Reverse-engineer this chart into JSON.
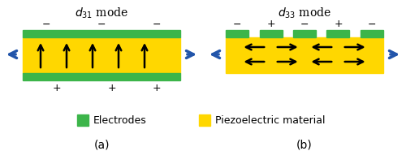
{
  "fig_width": 5.0,
  "fig_height": 2.03,
  "dpi": 100,
  "bg_color": "#ffffff",
  "gold_color": "#FFD700",
  "green_color": "#3CB54A",
  "arrow_blue": "#2255AA",
  "arrow_black": "#000000",
  "title_left": "$d_{31}$ mode",
  "title_right": "$d_{33}$ mode",
  "label_a": "(a)",
  "label_b": "(b)",
  "legend_electrode": "Electrodes",
  "legend_piezo": "Piezoelectric material"
}
